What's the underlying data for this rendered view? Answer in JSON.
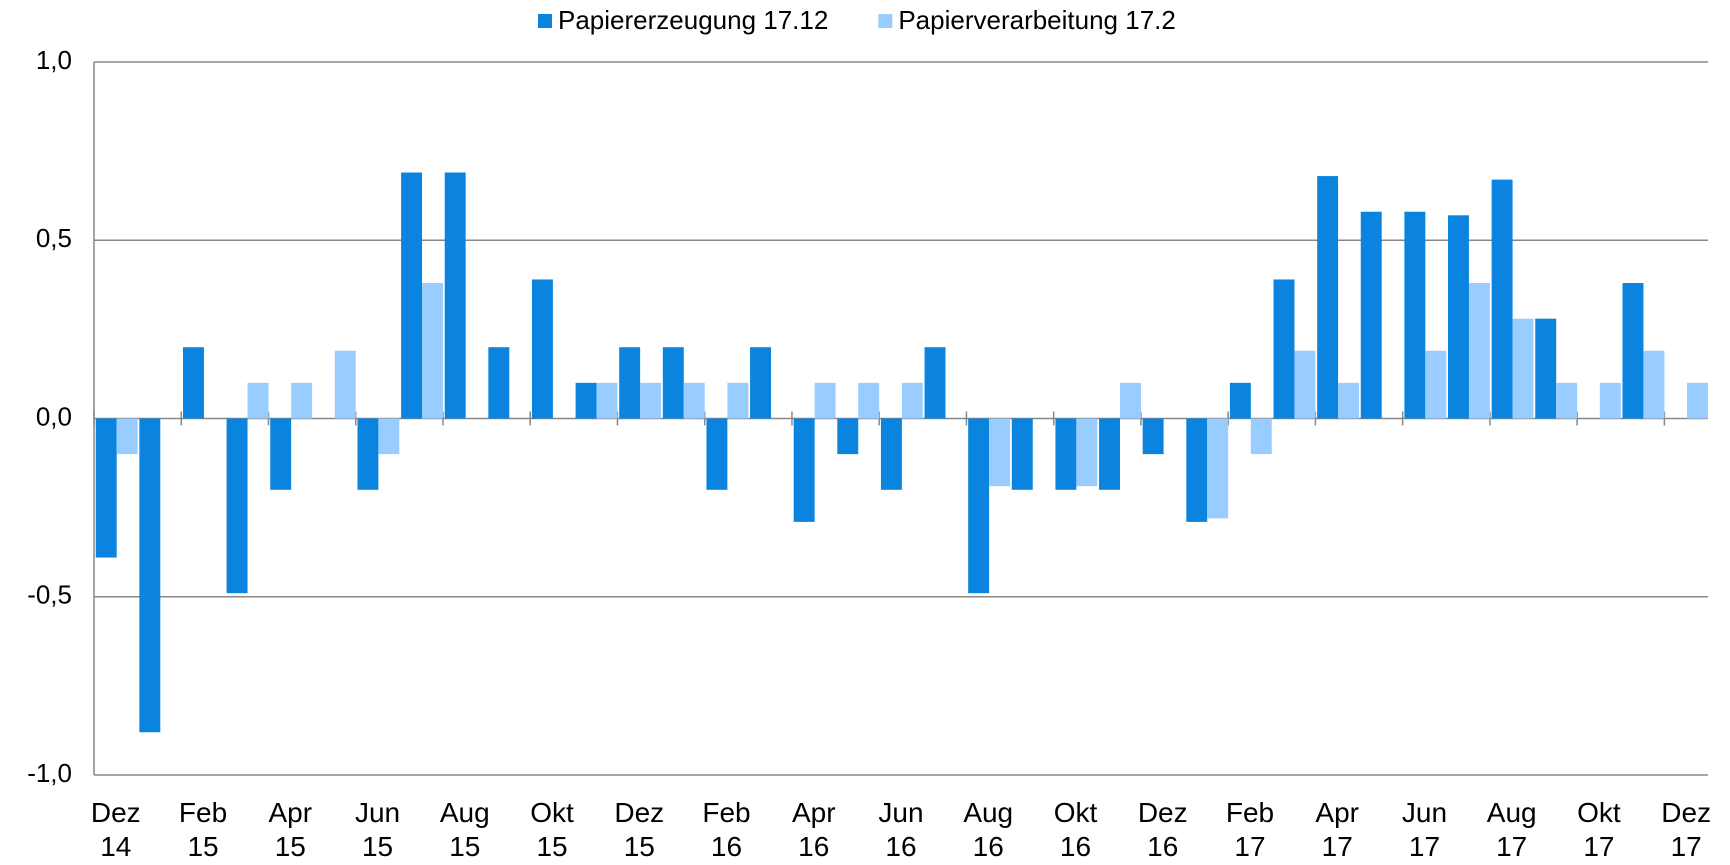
{
  "chart_data": {
    "type": "bar",
    "categories": [
      "Dez\n14",
      null,
      "Feb\n15",
      null,
      "Apr\n15",
      null,
      "Jun\n15",
      null,
      "Aug\n15",
      null,
      "Okt\n15",
      null,
      "Dez\n15",
      null,
      "Feb\n16",
      null,
      "Apr\n16",
      null,
      "Jun\n16",
      null,
      "Aug\n16",
      null,
      "Okt\n16",
      null,
      "Dez\n16",
      null,
      "Feb\n17",
      null,
      "Apr\n17",
      null,
      "Jun\n17",
      null,
      "Aug\n17",
      null,
      "Okt\n17",
      null,
      "Dez\n17"
    ],
    "series": [
      {
        "name": "Papiererzeugung 17.12",
        "color": "#0a84de",
        "values": [
          -0.39,
          -0.88,
          0.2,
          -0.49,
          -0.2,
          0,
          -0.2,
          0.69,
          0.69,
          0.2,
          0.39,
          0.1,
          0.2,
          0.2,
          -0.2,
          0.2,
          -0.29,
          -0.1,
          -0.2,
          0.2,
          -0.49,
          -0.2,
          -0.2,
          -0.2,
          -0.1,
          -0.29,
          0.1,
          0.39,
          0.68,
          0.58,
          0.58,
          0.57,
          0.67,
          0.28,
          0,
          0.38,
          0
        ]
      },
      {
        "name": "Papierverarbeitung 17.2",
        "color": "#99ccff",
        "values": [
          -0.1,
          0,
          0,
          0.1,
          0.1,
          0.19,
          -0.1,
          0.38,
          0,
          0,
          0,
          0.1,
          0.1,
          0.1,
          0.1,
          0,
          0.1,
          0.1,
          0.1,
          0,
          -0.19,
          0,
          -0.19,
          0.1,
          0,
          -0.28,
          -0.1,
          0.19,
          0.1,
          0,
          0.19,
          0.38,
          0.28,
          0.1,
          0.1,
          0.19,
          0.1
        ]
      }
    ],
    "ylim": [
      -1,
      1
    ],
    "yticks": [
      {
        "value": -1,
        "label": "-1,0"
      },
      {
        "value": -0.5,
        "label": "-0,5"
      },
      {
        "value": 0,
        "label": "0,0"
      },
      {
        "value": 0.5,
        "label": "0,5"
      },
      {
        "value": 1,
        "label": "1,0"
      }
    ],
    "grid": true,
    "legend": "top"
  }
}
